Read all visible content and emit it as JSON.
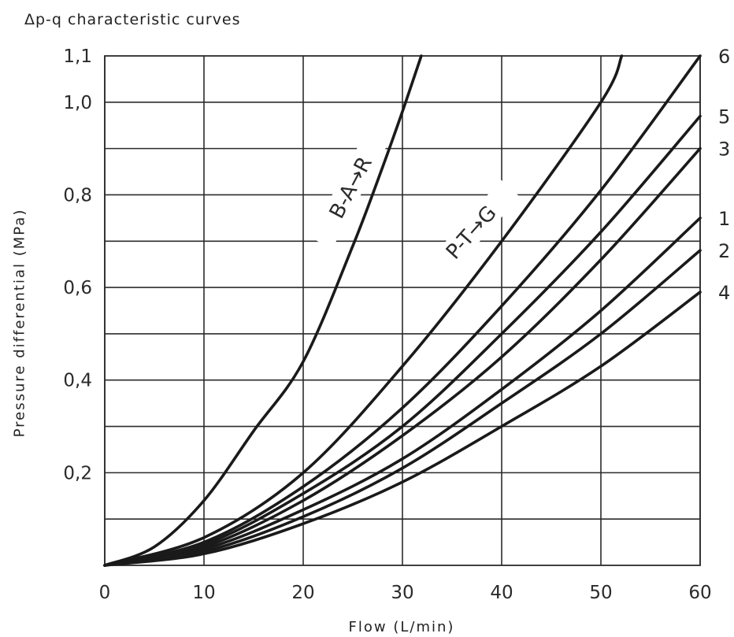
{
  "chart_data": {
    "type": "line",
    "title": "Δp-q characteristic curves",
    "xlabel": "Flow (L/min)",
    "ylabel": "Pressure differential (MPa)",
    "xlim": [
      0,
      60
    ],
    "ylim": [
      0,
      1.1
    ],
    "x_ticks": [
      "0",
      "10",
      "20",
      "30",
      "40",
      "50",
      "60"
    ],
    "y_ticks": [
      {
        "value": 0.2,
        "label": "0,2"
      },
      {
        "value": 0.4,
        "label": "0,4"
      },
      {
        "value": 0.6,
        "label": "0,6"
      },
      {
        "value": 0.8,
        "label": "0,8"
      },
      {
        "value": 1.0,
        "label": "1,0"
      },
      {
        "value": 1.1,
        "label": "1,1"
      }
    ],
    "grid": true,
    "series": [
      {
        "name": "B-A→R",
        "x": [
          0,
          5,
          10,
          15,
          20,
          25,
          28,
          30,
          31.9
        ],
        "y": [
          0,
          0.04,
          0.14,
          0.29,
          0.44,
          0.69,
          0.86,
          0.98,
          1.1
        ]
      },
      {
        "name": "P-T→G",
        "x": [
          0,
          10,
          20,
          30,
          40,
          50,
          52.1
        ],
        "y": [
          0,
          0.06,
          0.2,
          0.43,
          0.7,
          1.0,
          1.1
        ]
      },
      {
        "name": "6",
        "x": [
          0,
          10,
          20,
          30,
          40,
          50,
          60
        ],
        "y": [
          0,
          0.05,
          0.17,
          0.34,
          0.56,
          0.81,
          1.1
        ]
      },
      {
        "name": "5",
        "x": [
          0,
          10,
          20,
          30,
          40,
          50,
          60
        ],
        "y": [
          0,
          0.045,
          0.155,
          0.3,
          0.5,
          0.72,
          0.97
        ]
      },
      {
        "name": "3",
        "x": [
          0,
          10,
          20,
          30,
          40,
          50,
          60
        ],
        "y": [
          0,
          0.04,
          0.14,
          0.28,
          0.45,
          0.66,
          0.9
        ]
      },
      {
        "name": "1",
        "x": [
          0,
          10,
          20,
          30,
          40,
          50,
          60
        ],
        "y": [
          0,
          0.035,
          0.12,
          0.23,
          0.38,
          0.55,
          0.75
        ]
      },
      {
        "name": "2",
        "x": [
          0,
          10,
          20,
          30,
          40,
          50,
          60
        ],
        "y": [
          0,
          0.03,
          0.105,
          0.21,
          0.35,
          0.5,
          0.68
        ]
      },
      {
        "name": "4",
        "x": [
          0,
          10,
          20,
          30,
          40,
          50,
          60
        ],
        "y": [
          0,
          0.025,
          0.09,
          0.18,
          0.3,
          0.43,
          0.59
        ]
      }
    ],
    "series_labels": [
      {
        "text": "B-A→R",
        "series": 0
      },
      {
        "text": "P-T→G",
        "series": 1
      },
      {
        "text": "6",
        "series": 2
      },
      {
        "text": "5",
        "series": 3
      },
      {
        "text": "3",
        "series": 4
      },
      {
        "text": "1",
        "series": 5
      },
      {
        "text": "2",
        "series": 6
      },
      {
        "text": "4",
        "series": 7
      }
    ]
  }
}
